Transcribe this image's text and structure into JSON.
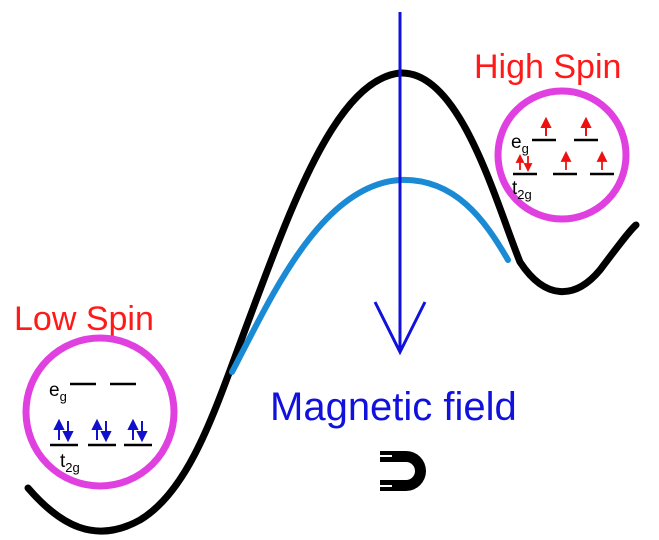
{
  "labels": {
    "high_spin": "High Spin",
    "low_spin": "Low Spin",
    "magnetic_field": "Magnetic field"
  },
  "high_spin_config": {
    "eg_main": "e",
    "eg_sub": "g",
    "t2g_main": "t",
    "t2g_sub": "2g"
  },
  "low_spin_config": {
    "eg_main": "e",
    "eg_sub": "g",
    "t2g_main": "t",
    "t2g_sub": "2g"
  },
  "icons": {
    "magnet": "magnet-icon",
    "field_arrow": "arrow-down-icon"
  },
  "colors": {
    "curve": "#000000",
    "curve_field": "#1a8ad4",
    "arrow": "#1111dd",
    "circle": "#e040e0",
    "spin_label": "#ff1a1a",
    "field_label": "#1111dd",
    "high_spin_electrons": "#ee1111",
    "low_spin_electrons": "#1111cc"
  }
}
